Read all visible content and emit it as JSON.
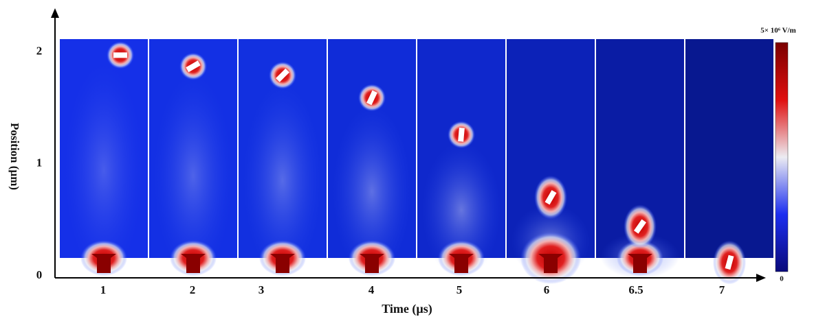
{
  "chart_data": {
    "type": "scatter",
    "x_label": "Time (µs)",
    "y_label": "Position (µm)",
    "categories": [
      "1",
      "2",
      "3",
      "4",
      "5",
      "6",
      "6.5",
      "7"
    ],
    "values": [
      1.97,
      1.87,
      1.79,
      1.59,
      1.26,
      0.7,
      0.44,
      0.12
    ],
    "ylim": [
      0,
      2.34
    ],
    "yticks": [
      0,
      1,
      2
    ],
    "colorbar": {
      "max_label": "5× 10⁶ V/m",
      "min_label": "0"
    }
  }
}
